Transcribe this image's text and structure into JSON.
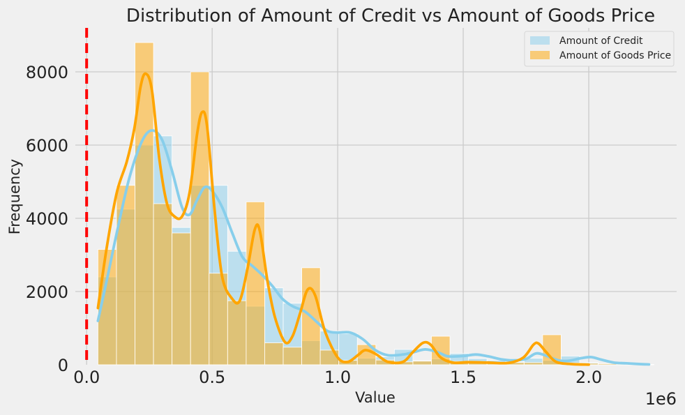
{
  "chart_data": {
    "type": "histogram",
    "title": "Distribution of Amount of Credit vs Amount of Goods Price",
    "xlabel": "Value",
    "ylabel": "Frequency",
    "x_offset_label": "1e6",
    "xlim": [
      -45000,
      2350000
    ],
    "ylim": [
      0,
      9200
    ],
    "x_ticks": [
      0,
      500000,
      1000000,
      1500000,
      2000000
    ],
    "x_tick_labels": [
      "0.0",
      "0.5",
      "1.0",
      "1.5",
      "2.0"
    ],
    "y_ticks": [
      0,
      2000,
      4000,
      6000,
      8000
    ],
    "y_tick_labels": [
      "0",
      "2000",
      "4000",
      "6000",
      "8000"
    ],
    "grid": true,
    "legend_position": "top-right",
    "bin_edges": [
      45000,
      118800,
      192600,
      266400,
      340200,
      414000,
      487800,
      561600,
      635400,
      709200,
      783000,
      856800,
      930600,
      1004400,
      1078200,
      1152000,
      1225800,
      1299600,
      1373400,
      1447200,
      1521000,
      1594800,
      1668600,
      1742400,
      1816200,
      1890000,
      1963800,
      2037600,
      2111400,
      2185200,
      2259000
    ],
    "vline": {
      "x": 0,
      "color": "#ff0000",
      "style": "dashed"
    },
    "series": [
      {
        "name": "Amount of Credit",
        "color": "#87ceeb",
        "counts": [
          2400,
          4250,
          6000,
          6250,
          3750,
          4900,
          4900,
          3100,
          1600,
          2100,
          1680,
          660,
          920,
          850,
          180,
          220,
          420,
          110,
          160,
          310,
          170,
          120,
          80,
          180,
          120,
          240,
          60,
          30,
          20,
          10
        ],
        "kde": [
          [
            45000,
            1200
          ],
          [
            80000,
            2300
          ],
          [
            120000,
            3600
          ],
          [
            170000,
            5100
          ],
          [
            220000,
            6100
          ],
          [
            260000,
            6400
          ],
          [
            300000,
            6150
          ],
          [
            340000,
            5300
          ],
          [
            380000,
            4300
          ],
          [
            410000,
            4100
          ],
          [
            440000,
            4500
          ],
          [
            470000,
            4850
          ],
          [
            500000,
            4750
          ],
          [
            540000,
            4300
          ],
          [
            580000,
            3600
          ],
          [
            620000,
            2950
          ],
          [
            660000,
            2700
          ],
          [
            700000,
            2450
          ],
          [
            740000,
            2150
          ],
          [
            780000,
            1800
          ],
          [
            820000,
            1600
          ],
          [
            870000,
            1450
          ],
          [
            920000,
            1150
          ],
          [
            960000,
            920
          ],
          [
            1000000,
            880
          ],
          [
            1050000,
            880
          ],
          [
            1100000,
            700
          ],
          [
            1150000,
            400
          ],
          [
            1200000,
            260
          ],
          [
            1260000,
            280
          ],
          [
            1300000,
            340
          ],
          [
            1350000,
            420
          ],
          [
            1400000,
            340
          ],
          [
            1440000,
            230
          ],
          [
            1500000,
            240
          ],
          [
            1550000,
            280
          ],
          [
            1600000,
            230
          ],
          [
            1650000,
            150
          ],
          [
            1700000,
            120
          ],
          [
            1750000,
            160
          ],
          [
            1790000,
            310
          ],
          [
            1830000,
            250
          ],
          [
            1880000,
            120
          ],
          [
            1920000,
            110
          ],
          [
            1970000,
            180
          ],
          [
            2010000,
            210
          ],
          [
            2050000,
            140
          ],
          [
            2100000,
            60
          ],
          [
            2150000,
            40
          ],
          [
            2200000,
            20
          ],
          [
            2240000,
            10
          ]
        ]
      },
      {
        "name": "Amount of Goods Price",
        "color": "#ffa500",
        "counts": [
          3150,
          4900,
          8800,
          4400,
          3600,
          8000,
          2500,
          1750,
          4450,
          600,
          480,
          2650,
          400,
          120,
          550,
          130,
          80,
          100,
          780,
          90,
          70,
          60,
          60,
          60,
          820,
          50,
          40,
          30,
          20,
          10
        ],
        "kde": [
          [
            45000,
            1550
          ],
          [
            80000,
            3200
          ],
          [
            120000,
            4700
          ],
          [
            160000,
            5550
          ],
          [
            190000,
            6450
          ],
          [
            215000,
            7600
          ],
          [
            235000,
            7950
          ],
          [
            260000,
            7500
          ],
          [
            290000,
            5600
          ],
          [
            320000,
            4400
          ],
          [
            350000,
            4050
          ],
          [
            380000,
            4050
          ],
          [
            410000,
            4700
          ],
          [
            440000,
            6300
          ],
          [
            460000,
            6900
          ],
          [
            480000,
            6500
          ],
          [
            510000,
            4200
          ],
          [
            540000,
            2400
          ],
          [
            580000,
            1800
          ],
          [
            610000,
            1750
          ],
          [
            640000,
            2600
          ],
          [
            670000,
            3700
          ],
          [
            690000,
            3650
          ],
          [
            720000,
            2300
          ],
          [
            750000,
            1300
          ],
          [
            790000,
            620
          ],
          [
            820000,
            780
          ],
          [
            850000,
            1400
          ],
          [
            880000,
            2050
          ],
          [
            910000,
            1900
          ],
          [
            950000,
            900
          ],
          [
            1000000,
            200
          ],
          [
            1040000,
            80
          ],
          [
            1080000,
            260
          ],
          [
            1110000,
            400
          ],
          [
            1150000,
            300
          ],
          [
            1200000,
            80
          ],
          [
            1260000,
            80
          ],
          [
            1300000,
            350
          ],
          [
            1340000,
            600
          ],
          [
            1370000,
            550
          ],
          [
            1410000,
            200
          ],
          [
            1460000,
            60
          ],
          [
            1520000,
            70
          ],
          [
            1600000,
            60
          ],
          [
            1680000,
            50
          ],
          [
            1740000,
            200
          ],
          [
            1780000,
            550
          ],
          [
            1800000,
            580
          ],
          [
            1830000,
            350
          ],
          [
            1870000,
            80
          ],
          [
            1930000,
            20
          ],
          [
            2000000,
            5
          ]
        ]
      }
    ]
  }
}
